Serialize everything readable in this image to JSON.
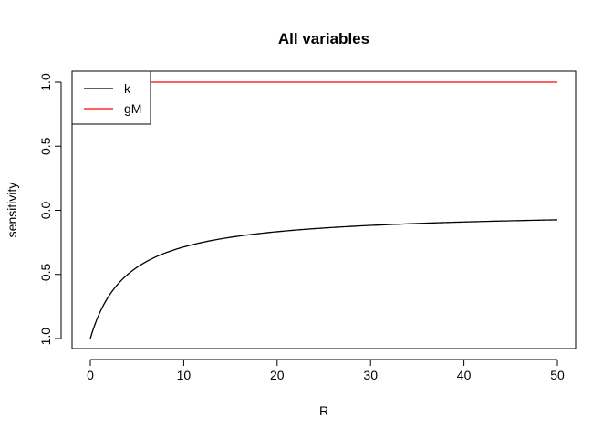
{
  "chart_data": {
    "type": "line",
    "title": "All variables",
    "xlabel": "R",
    "ylabel": "sensitivity",
    "xlim": [
      0,
      50
    ],
    "ylim": [
      -1.0,
      1.0
    ],
    "x_ticks": [
      0,
      10,
      20,
      30,
      40,
      50
    ],
    "x_tick_labels": [
      "0",
      "10",
      "20",
      "30",
      "40",
      "50"
    ],
    "y_ticks": [
      -1.0,
      -0.5,
      0.0,
      0.5,
      1.0
    ],
    "y_tick_labels": [
      "-1.0",
      "-0.5",
      "0.0",
      "0.5",
      "1.0"
    ],
    "grid": false,
    "legend_position": "top-left",
    "series": [
      {
        "name": "k",
        "color": "#000000",
        "x": [
          0,
          1,
          2,
          3,
          4,
          5,
          6,
          7,
          8,
          9,
          10,
          12,
          14,
          16,
          18,
          20,
          25,
          30,
          35,
          40,
          45,
          50
        ],
        "y": [
          -1.0,
          -0.8,
          -0.67,
          -0.57,
          -0.5,
          -0.44,
          -0.4,
          -0.36,
          -0.33,
          -0.31,
          -0.29,
          -0.25,
          -0.22,
          -0.2,
          -0.18,
          -0.17,
          -0.14,
          -0.12,
          -0.1,
          -0.09,
          -0.08,
          -0.07
        ]
      },
      {
        "name": "gM",
        "color": "#ff0000",
        "x": [
          0,
          50
        ],
        "y": [
          1.0,
          1.0
        ]
      }
    ]
  }
}
